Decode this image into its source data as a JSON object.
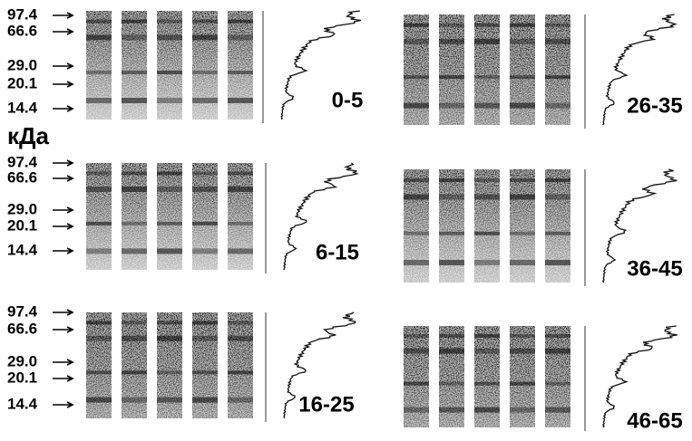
{
  "unit": "кДа",
  "markers": [
    "97.4",
    "66.6",
    "29.0",
    "20.1",
    "14.4"
  ],
  "panels": [
    {
      "label": "0-5"
    },
    {
      "label": "26-35"
    },
    {
      "label": "6-15"
    },
    {
      "label": "36-45"
    },
    {
      "label": "16-25"
    },
    {
      "label": "46-65"
    }
  ]
}
